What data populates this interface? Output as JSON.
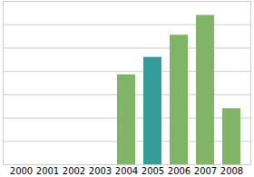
{
  "chart_data": {
    "type": "bar",
    "categories": [
      "2000",
      "2001",
      "2002",
      "2003",
      "2004",
      "2005",
      "2006",
      "2007",
      "2008"
    ],
    "values": [
      0,
      0,
      0,
      0,
      3.85,
      4.6,
      5.55,
      6.4,
      2.4
    ],
    "colors": [
      "#80b466",
      "#80b466",
      "#80b466",
      "#80b466",
      "#80b466",
      "#339e99",
      "#80b466",
      "#80b466",
      "#80b466"
    ],
    "ylim": [
      0,
      7
    ],
    "yticks": [
      0,
      1,
      2,
      3,
      4,
      5,
      6,
      7
    ],
    "grid": true,
    "tick_labels": "x"
  }
}
